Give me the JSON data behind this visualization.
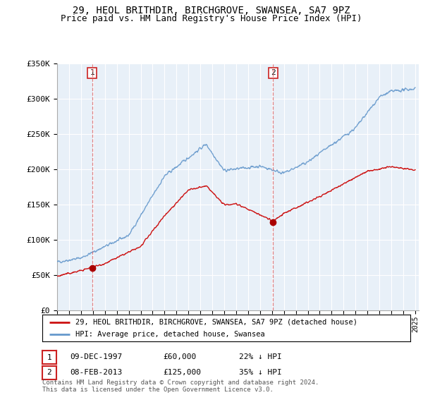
{
  "title": "29, HEOL BRITHDIR, BIRCHGROVE, SWANSEA, SA7 9PZ",
  "subtitle": "Price paid vs. HM Land Registry's House Price Index (HPI)",
  "ylim": [
    0,
    350000
  ],
  "yticks": [
    0,
    50000,
    100000,
    150000,
    200000,
    250000,
    300000,
    350000
  ],
  "ytick_labels": [
    "£0",
    "£50K",
    "£100K",
    "£150K",
    "£200K",
    "£250K",
    "£300K",
    "£350K"
  ],
  "bg_color": "#e8f0f8",
  "line1_color": "#cc1111",
  "line2_color": "#6699cc",
  "dashed_color": "#dd6666",
  "marker_color": "#aa0000",
  "transaction1_date": 1997.93,
  "transaction1_price": 60000,
  "transaction2_date": 2013.1,
  "transaction2_price": 125000,
  "legend_label1": "29, HEOL BRITHDIR, BIRCHGROVE, SWANSEA, SA7 9PZ (detached house)",
  "legend_label2": "HPI: Average price, detached house, Swansea",
  "note1_date": "09-DEC-1997",
  "note1_price": "£60,000",
  "note1_hpi": "22% ↓ HPI",
  "note2_date": "08-FEB-2013",
  "note2_price": "£125,000",
  "note2_hpi": "35% ↓ HPI",
  "footer": "Contains HM Land Registry data © Crown copyright and database right 2024.\nThis data is licensed under the Open Government Licence v3.0.",
  "title_fontsize": 10,
  "subtitle_fontsize": 9
}
